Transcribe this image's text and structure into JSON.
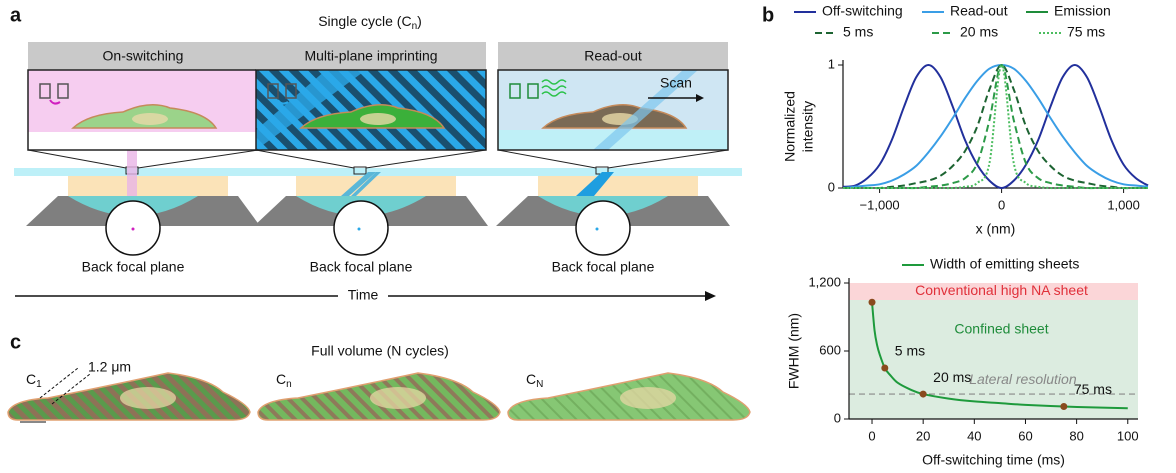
{
  "figure": {
    "panel_labels": [
      "a",
      "b",
      "c"
    ],
    "panel_a": {
      "title": [
        "Single cycle (C",
        "n",
        ")"
      ],
      "steps": [
        "On-switching",
        "Multi-plane imprinting",
        "Read-out"
      ],
      "bfp_label": [
        "Back focal plane",
        "Back focal plane",
        "Back focal plane"
      ],
      "scan": "Scan",
      "time": "Time"
    },
    "panel_c": {
      "title": "Full volume (N cycles)",
      "scale": "1.2 μm",
      "cycles": [
        [
          "C",
          "1"
        ],
        [
          "C",
          "n"
        ],
        [
          "C",
          "N"
        ]
      ]
    }
  },
  "chart_data": [
    {
      "type": "line",
      "xlabel": "x (nm)",
      "ylabel": [
        "Normalized",
        "intensity"
      ],
      "x": [
        -1300,
        -1200,
        -1100,
        -1000,
        -900,
        -800,
        -700,
        -600,
        -500,
        -400,
        -300,
        -200,
        -100,
        0,
        100,
        200,
        300,
        400,
        500,
        600,
        700,
        800,
        900,
        1000,
        1100,
        1200
      ],
      "xlim": [
        -1300,
        1200
      ],
      "xticks": [
        {
          "value": -1000,
          "label": "−1,000"
        },
        0,
        {
          "value": 1000,
          "label": "1,000"
        }
      ],
      "ylim": [
        0,
        1
      ],
      "yticks": [
        0,
        1
      ],
      "legend_heading": {
        "name": "Emission",
        "color": "#1e8c3a"
      },
      "series": [
        {
          "name": "Off-switching",
          "color": "#22309c",
          "linestyle": "solid",
          "values": [
            0.01,
            0.02,
            0.08,
            0.19,
            0.39,
            0.66,
            0.9,
            1,
            0.9,
            0.66,
            0.39,
            0.19,
            0.06,
            0,
            0.06,
            0.19,
            0.39,
            0.66,
            0.9,
            1,
            0.9,
            0.66,
            0.39,
            0.19,
            0.08,
            0.02
          ]
        },
        {
          "name": "Read-out",
          "color": "#3a9ee6",
          "linestyle": "solid",
          "values": [
            0,
            0.01,
            0.02,
            0.03,
            0.06,
            0.11,
            0.18,
            0.29,
            0.42,
            0.57,
            0.73,
            0.87,
            0.97,
            1,
            0.97,
            0.87,
            0.73,
            0.57,
            0.42,
            0.29,
            0.18,
            0.11,
            0.06,
            0.03,
            0.02,
            0.01
          ]
        },
        {
          "name": "5 ms",
          "color": "#1d6432",
          "linestyle": "dashed",
          "values": [
            0,
            0,
            0,
            0,
            0.01,
            0.02,
            0.04,
            0.06,
            0.1,
            0.18,
            0.3,
            0.5,
            0.8,
            1,
            0.8,
            0.5,
            0.3,
            0.18,
            0.1,
            0.06,
            0.04,
            0.02,
            0.01,
            0,
            0,
            0
          ]
        },
        {
          "name": "20 ms",
          "color": "#2c9a48",
          "linestyle": "dashed",
          "values": [
            0,
            0,
            0,
            0,
            0,
            0,
            0,
            0.01,
            0.02,
            0.04,
            0.08,
            0.2,
            0.55,
            1,
            0.55,
            0.2,
            0.08,
            0.04,
            0.02,
            0.01,
            0,
            0,
            0,
            0,
            0,
            0
          ]
        },
        {
          "name": "75 ms",
          "color": "#4bbd5f",
          "linestyle": "dotted",
          "values": [
            0,
            0,
            0,
            0,
            0,
            0,
            0,
            0,
            0,
            0,
            0.01,
            0.04,
            0.2,
            1,
            0.2,
            0.04,
            0.01,
            0,
            0,
            0,
            0,
            0,
            0,
            0,
            0,
            0
          ]
        }
      ]
    },
    {
      "type": "line",
      "xlabel": "Off-switching time (ms)",
      "ylabel": "FWHM (nm)",
      "x": [
        0,
        1,
        2,
        3,
        5,
        7,
        10,
        15,
        20,
        30,
        40,
        50,
        60,
        75,
        90,
        100
      ],
      "xlim": [
        -9,
        104
      ],
      "xticks": [
        0,
        20,
        40,
        60,
        80,
        100
      ],
      "ylim": [
        0,
        1200
      ],
      "yticks": [
        0,
        600,
        {
          "value": 1200,
          "label": "1,200"
        }
      ],
      "bands": [
        {
          "label": "Conventional high NA sheet",
          "from": 1050,
          "to": 1200,
          "color": "#fbd6d8",
          "text_color": "#e0303a"
        },
        {
          "label": "Confined sheet",
          "from": 0,
          "to": 1050,
          "color": "#dcece0",
          "text_color": "#1e8c3a"
        }
      ],
      "reference_line": {
        "label": "Lateral resolution",
        "value": 220,
        "color": "#888888"
      },
      "series": [
        {
          "name": "Width of emitting sheets",
          "color": "#1e9a3c",
          "values": [
            1030,
            780,
            650,
            570,
            450,
            390,
            320,
            260,
            220,
            180,
            155,
            140,
            125,
            110,
            100,
            95
          ]
        }
      ],
      "markers": {
        "x": [
          0,
          5,
          20,
          75
        ],
        "values": [
          1030,
          450,
          220,
          110
        ],
        "labels": [
          null,
          "5 ms",
          "20 ms",
          "75 ms"
        ],
        "color": "#8a4a1e"
      }
    }
  ]
}
